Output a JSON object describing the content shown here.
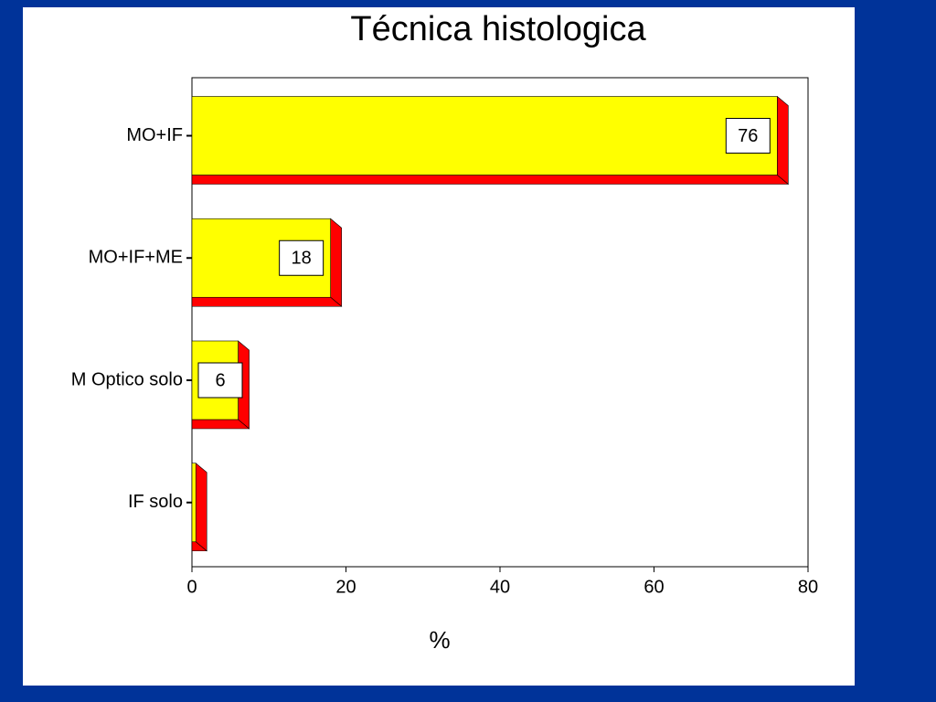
{
  "chart_data": {
    "type": "bar",
    "orientation": "horizontal",
    "title": "Técnica histologica",
    "xlabel": "%",
    "categories": [
      "MO+IF",
      "MO+IF+ME",
      "M Optico solo",
      "IF solo"
    ],
    "values": [
      76,
      18,
      6,
      0.5
    ],
    "value_labels": [
      "76",
      "18",
      "6",
      null
    ],
    "color": "#ffff00",
    "side_color": "#ff0000",
    "xlim": [
      0,
      80
    ],
    "xticks": [
      0,
      20,
      40,
      60,
      80
    ],
    "grid": false
  }
}
